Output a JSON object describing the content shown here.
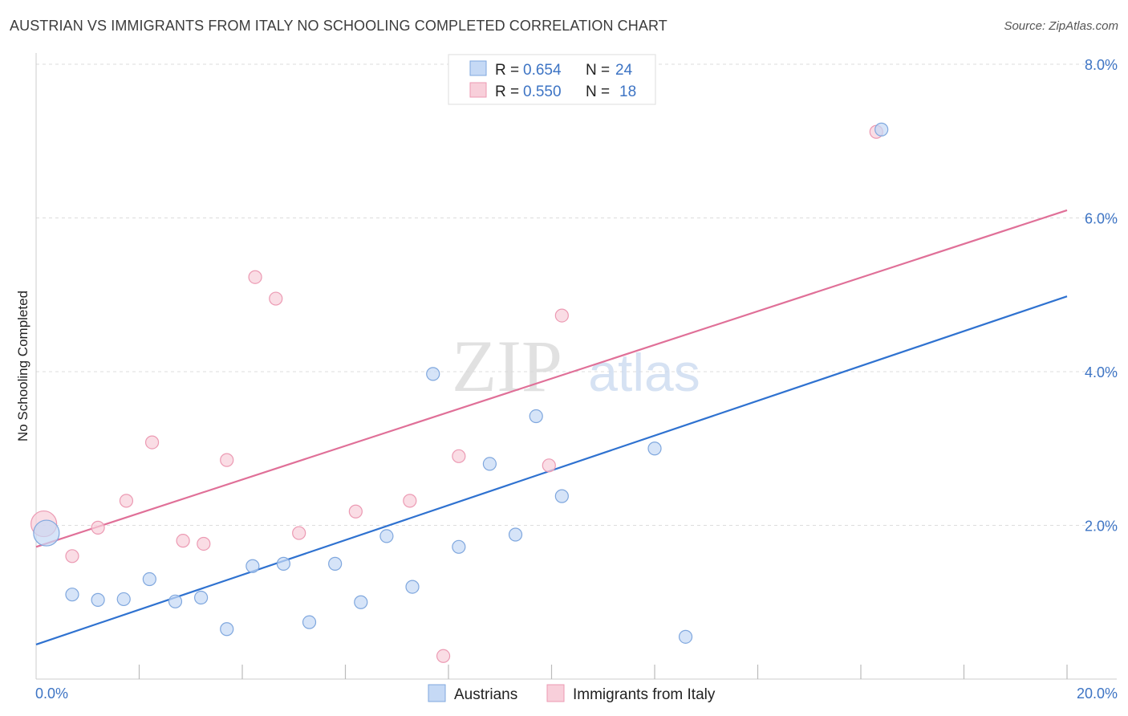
{
  "header": {
    "title": "AUSTRIAN VS IMMIGRANTS FROM ITALY NO SCHOOLING COMPLETED CORRELATION CHART",
    "source": "Source: ZipAtlas.com"
  },
  "watermark": {
    "zip": "ZIP",
    "atlas": "atlas"
  },
  "colors": {
    "blue_fill": "#c5d9f5",
    "blue_stroke": "#7fa7de",
    "blue_line": "#2f72d0",
    "pink_fill": "#f8cfda",
    "pink_stroke": "#ec9ab3",
    "pink_line": "#e07098",
    "axis_text": "#3d74c4",
    "grid": "#dddddd"
  },
  "legend": {
    "rows": [
      {
        "r_label": "R =",
        "r_value": "0.654",
        "n_label": "N =",
        "n_value": "24",
        "series": "blue"
      },
      {
        "r_label": "R =",
        "r_value": "0.550",
        "n_label": "N =",
        "n_value": "18",
        "series": "pink"
      }
    ]
  },
  "bottom_legend": {
    "items": [
      {
        "label": "Austrians",
        "series": "blue"
      },
      {
        "label": "Immigrants from Italy",
        "series": "pink"
      }
    ]
  },
  "chart_data": {
    "type": "scatter",
    "title": "AUSTRIAN VS IMMIGRANTS FROM ITALY NO SCHOOLING COMPLETED CORRELATION CHART",
    "xlabel": "",
    "ylabel": "No Schooling Completed",
    "xlim": [
      0,
      20
    ],
    "ylim": [
      0,
      8
    ],
    "x_tick_labels": [
      {
        "value": 0,
        "label": "0.0%"
      },
      {
        "value": 20,
        "label": "20.0%"
      }
    ],
    "y_tick_labels": [
      {
        "value": 2,
        "label": "2.0%"
      },
      {
        "value": 4,
        "label": "4.0%"
      },
      {
        "value": 6,
        "label": "6.0%"
      },
      {
        "value": 8,
        "label": "8.0%"
      }
    ],
    "grid": true,
    "legend_position": "top-center",
    "series": [
      {
        "name": "Austrians",
        "color": "blue",
        "R": 0.654,
        "N": 24,
        "trend": {
          "x": [
            0,
            20
          ],
          "y": [
            0.45,
            4.98
          ]
        },
        "points": [
          {
            "x": 0.2,
            "y": 1.9,
            "size": "large"
          },
          {
            "x": 0.7,
            "y": 1.1
          },
          {
            "x": 1.2,
            "y": 1.03
          },
          {
            "x": 1.7,
            "y": 1.04
          },
          {
            "x": 2.2,
            "y": 1.3
          },
          {
            "x": 2.7,
            "y": 1.01
          },
          {
            "x": 3.2,
            "y": 1.06
          },
          {
            "x": 3.7,
            "y": 0.65
          },
          {
            "x": 4.2,
            "y": 1.47
          },
          {
            "x": 4.8,
            "y": 1.5
          },
          {
            "x": 5.3,
            "y": 0.74
          },
          {
            "x": 5.8,
            "y": 1.5
          },
          {
            "x": 6.3,
            "y": 1.0
          },
          {
            "x": 6.8,
            "y": 1.86
          },
          {
            "x": 7.3,
            "y": 1.2
          },
          {
            "x": 7.7,
            "y": 3.97
          },
          {
            "x": 8.2,
            "y": 1.72
          },
          {
            "x": 8.8,
            "y": 2.8
          },
          {
            "x": 9.3,
            "y": 1.88
          },
          {
            "x": 9.7,
            "y": 3.42
          },
          {
            "x": 10.2,
            "y": 2.38
          },
          {
            "x": 12.0,
            "y": 3.0
          },
          {
            "x": 12.6,
            "y": 0.55
          },
          {
            "x": 16.4,
            "y": 7.15
          }
        ]
      },
      {
        "name": "Immigrants from Italy",
        "color": "pink",
        "R": 0.55,
        "N": 18,
        "trend": {
          "x": [
            0,
            20
          ],
          "y": [
            1.72,
            6.1
          ]
        },
        "points": [
          {
            "x": 0.15,
            "y": 2.02,
            "size": "large"
          },
          {
            "x": 0.7,
            "y": 1.6
          },
          {
            "x": 1.2,
            "y": 1.97
          },
          {
            "x": 1.75,
            "y": 2.32
          },
          {
            "x": 2.25,
            "y": 3.08
          },
          {
            "x": 2.85,
            "y": 1.8
          },
          {
            "x": 3.25,
            "y": 1.76
          },
          {
            "x": 3.7,
            "y": 2.85
          },
          {
            "x": 4.25,
            "y": 5.23
          },
          {
            "x": 4.65,
            "y": 4.95
          },
          {
            "x": 5.1,
            "y": 1.9
          },
          {
            "x": 6.2,
            "y": 2.18
          },
          {
            "x": 7.25,
            "y": 2.32
          },
          {
            "x": 7.9,
            "y": 0.3
          },
          {
            "x": 8.2,
            "y": 2.9
          },
          {
            "x": 9.95,
            "y": 2.78
          },
          {
            "x": 10.2,
            "y": 4.73
          },
          {
            "x": 16.3,
            "y": 7.12
          }
        ]
      }
    ]
  }
}
